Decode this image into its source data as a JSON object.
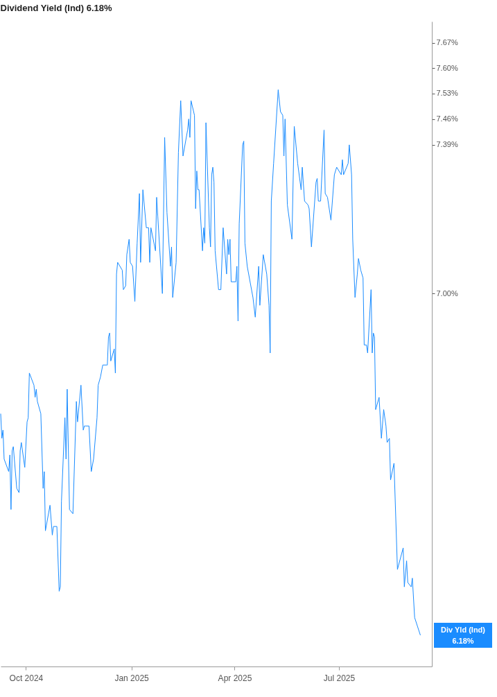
{
  "chart_data": {
    "type": "line",
    "title": "Dividend Yield (Ind) 6.18%",
    "x": [
      "2024-09-09",
      "2024-09-10",
      "2024-09-11",
      "2024-09-12",
      "2024-09-16",
      "2024-09-17",
      "2024-09-18",
      "2024-09-19",
      "2024-09-20",
      "2024-09-23",
      "2024-09-25",
      "2024-09-26",
      "2024-09-27",
      "2024-09-30",
      "2024-10-02",
      "2024-10-03",
      "2024-10-04",
      "2024-10-08",
      "2024-10-09",
      "2024-10-10",
      "2024-10-11",
      "2024-10-14",
      "2024-10-16",
      "2024-10-17",
      "2024-10-18",
      "2024-10-22",
      "2024-10-24",
      "2024-10-25",
      "2024-10-28",
      "2024-10-30",
      "2024-10-31",
      "2024-11-01",
      "2024-11-04",
      "2024-11-05",
      "2024-11-06",
      "2024-11-08",
      "2024-11-11",
      "2024-11-14",
      "2024-11-15",
      "2024-11-18",
      "2024-11-20",
      "2024-11-21",
      "2024-11-22",
      "2024-11-25",
      "2024-11-27",
      "2024-11-29",
      "2024-12-02",
      "2024-12-03",
      "2024-12-05",
      "2024-12-07",
      "2024-12-10",
      "2024-12-11",
      "2024-12-12",
      "2024-12-13",
      "2024-12-14",
      "2024-12-17",
      "2024-12-18",
      "2024-12-19",
      "2024-12-20",
      "2024-12-24",
      "2024-12-25",
      "2024-12-27",
      "2024-12-28",
      "2024-12-30",
      "2024-12-31",
      "2025-01-02",
      "2025-01-04",
      "2025-01-06",
      "2025-01-08",
      "2025-01-09",
      "2025-01-11",
      "2025-01-14",
      "2025-01-16",
      "2025-01-17",
      "2025-01-18",
      "2025-01-22",
      "2025-01-23",
      "2025-01-24",
      "2025-01-28",
      "2025-01-30",
      "2025-02-01",
      "2025-02-04",
      "2025-02-05",
      "2025-02-06",
      "2025-02-09",
      "2025-02-11",
      "2025-02-13",
      "2025-02-15",
      "2025-02-19",
      "2025-02-20",
      "2025-02-21",
      "2025-02-22",
      "2025-02-25",
      "2025-02-26",
      "2025-02-27",
      "2025-02-28",
      "2025-03-01",
      "2025-03-04",
      "2025-03-05",
      "2025-03-06",
      "2025-03-07",
      "2025-03-10",
      "2025-03-11",
      "2025-03-12",
      "2025-03-13",
      "2025-03-14",
      "2025-03-15",
      "2025-03-18",
      "2025-03-20",
      "2025-03-22",
      "2025-03-25",
      "2025-03-26",
      "2025-03-27",
      "2025-03-28",
      "2025-03-29",
      "2025-04-02",
      "2025-04-03",
      "2025-04-04",
      "2025-04-05",
      "2025-04-08",
      "2025-04-09",
      "2025-04-10",
      "2025-04-12",
      "2025-04-17",
      "2025-04-19",
      "2025-04-22",
      "2025-04-23",
      "2025-04-26",
      "2025-04-29",
      "2025-05-01",
      "2025-05-02",
      "2025-05-03",
      "2025-05-05",
      "2025-05-09",
      "2025-05-11",
      "2025-05-13",
      "2025-05-14",
      "2025-05-15",
      "2025-05-17",
      "2025-05-21",
      "2025-05-23",
      "2025-05-26",
      "2025-05-29",
      "2025-05-30",
      "2025-06-01",
      "2025-06-04",
      "2025-06-05",
      "2025-06-07",
      "2025-06-11",
      "2025-06-12",
      "2025-06-13",
      "2025-06-15",
      "2025-06-18",
      "2025-06-19",
      "2025-06-21",
      "2025-06-24",
      "2025-06-27",
      "2025-06-29",
      "2025-07-03",
      "2025-07-04",
      "2025-07-05",
      "2025-07-09",
      "2025-07-10",
      "2025-07-12",
      "2025-07-13",
      "2025-07-15",
      "2025-07-17",
      "2025-07-18",
      "2025-07-20",
      "2025-07-22",
      "2025-07-23",
      "2025-07-25",
      "2025-07-26",
      "2025-07-29",
      "2025-07-30",
      "2025-07-31",
      "2025-08-01",
      "2025-08-02",
      "2025-08-05",
      "2025-08-07",
      "2025-08-09",
      "2025-08-11",
      "2025-08-12",
      "2025-08-14",
      "2025-08-15",
      "2025-08-18",
      "2025-08-21",
      "2025-08-26",
      "2025-08-27",
      "2025-08-29",
      "2025-08-30",
      "2025-09-02",
      "2025-09-03",
      "2025-09-05",
      "2025-09-10"
    ],
    "series": [
      {
        "color": "#1a8cff",
        "values": [
          6.7,
          6.64,
          6.66,
          6.59,
          6.56,
          6.6,
          6.47,
          6.61,
          6.62,
          6.52,
          6.51,
          6.61,
          6.63,
          6.57,
          6.68,
          6.69,
          6.8,
          6.77,
          6.74,
          6.76,
          6.73,
          6.7,
          6.52,
          6.56,
          6.42,
          6.48,
          6.41,
          6.43,
          6.43,
          6.28,
          6.29,
          6.49,
          6.69,
          6.59,
          6.76,
          6.47,
          6.46,
          6.73,
          6.68,
          6.77,
          6.66,
          6.67,
          6.67,
          6.67,
          6.56,
          6.59,
          6.69,
          6.77,
          6.79,
          6.82,
          6.82,
          6.82,
          6.89,
          6.9,
          6.83,
          6.86,
          6.8,
          7.05,
          7.08,
          7.06,
          7.01,
          7.02,
          7.1,
          7.14,
          7.08,
          7.07,
          6.98,
          7.13,
          7.26,
          7.08,
          7.27,
          7.17,
          7.17,
          7.08,
          7.17,
          7.11,
          7.25,
          7.2,
          7.0,
          7.41,
          7.21,
          7.07,
          7.12,
          6.99,
          7.08,
          7.37,
          7.51,
          7.36,
          7.43,
          7.46,
          7.41,
          7.51,
          7.47,
          7.22,
          7.32,
          7.27,
          7.27,
          7.11,
          7.17,
          7.13,
          7.45,
          7.17,
          7.12,
          7.31,
          7.33,
          7.29,
          7.11,
          7.01,
          7.01,
          7.17,
          7.05,
          7.14,
          7.1,
          7.14,
          7.03,
          7.03,
          7.07,
          6.93,
          7.18,
          7.39,
          7.4,
          7.13,
          7.07,
          6.99,
          6.94,
          7.07,
          6.97,
          7.1,
          7.05,
          6.97,
          6.85,
          7.24,
          7.34,
          7.54,
          7.48,
          7.47,
          7.36,
          7.46,
          7.23,
          7.14,
          7.44,
          7.34,
          7.27,
          7.33,
          7.24,
          7.23,
          7.22,
          7.12,
          7.29,
          7.3,
          7.24,
          7.24,
          7.43,
          7.26,
          7.25,
          7.19,
          7.31,
          7.33,
          7.31,
          7.35,
          7.31,
          7.34,
          7.39,
          7.31,
          7.14,
          6.99,
          7.05,
          7.09,
          7.06,
          7.04,
          6.87,
          6.87,
          6.85,
          7.01,
          6.85,
          6.9,
          6.89,
          6.71,
          6.74,
          6.64,
          6.71,
          6.67,
          6.63,
          6.64,
          6.54,
          6.58,
          6.33,
          6.38,
          6.29,
          6.35,
          6.3,
          6.29,
          6.31,
          6.22,
          6.18
        ]
      }
    ],
    "log": "y",
    "xlim": [
      "2024-09-09",
      "2025-09-20"
    ],
    "xticks": [
      {
        "value": "2024-10-01",
        "label": "Oct 2024"
      },
      {
        "value": "2025-01-01",
        "label": "Jan 2025"
      },
      {
        "value": "2025-04-01",
        "label": "Apr 2025"
      },
      {
        "value": "2025-07-01",
        "label": "Jul 2025"
      }
    ],
    "ylim": [
      6.11,
      7.73
    ],
    "yticks": [
      {
        "value": 7.0,
        "label": "7.00%"
      },
      {
        "value": 7.39,
        "label": "7.39%"
      },
      {
        "value": 7.46,
        "label": "7.46%"
      },
      {
        "value": 7.53,
        "label": "7.53%"
      },
      {
        "value": 7.6,
        "label": "7.60%"
      },
      {
        "value": 7.67,
        "label": "7.67%"
      }
    ],
    "annotations": [
      "Div Yld (Ind)\n6.18%"
    ]
  }
}
